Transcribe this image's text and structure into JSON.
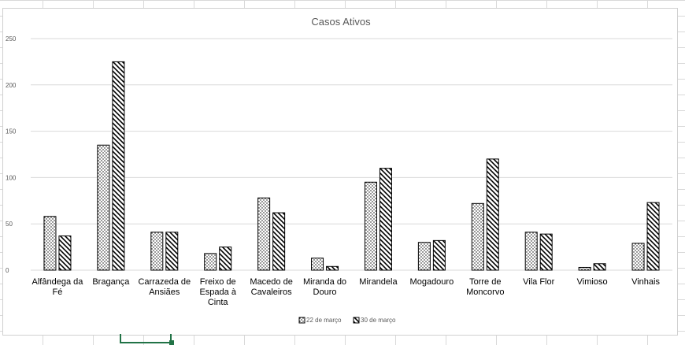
{
  "chart_data": {
    "type": "bar",
    "title": "Casos Ativos",
    "categories": [
      [
        "Alfândega da",
        "Fé"
      ],
      [
        "Bragança"
      ],
      [
        "Carrazeda de",
        "Ansiães"
      ],
      [
        "Freixo de",
        "Espada à",
        "Cinta"
      ],
      [
        "Macedo de",
        "Cavaleiros"
      ],
      [
        "Miranda do",
        "Douro"
      ],
      [
        "Mirandela"
      ],
      [
        "Mogadouro"
      ],
      [
        "Torre de",
        "Moncorvo"
      ],
      [
        "Vila Flor"
      ],
      [
        "Vimioso"
      ],
      [
        "Vinhais"
      ]
    ],
    "series": [
      {
        "name": "22 de março",
        "values": [
          58,
          135,
          41,
          18,
          78,
          13,
          95,
          30,
          72,
          41,
          3,
          29
        ],
        "pattern": "dots"
      },
      {
        "name": "30 de março",
        "values": [
          37,
          225,
          41,
          25,
          62,
          4,
          110,
          32,
          120,
          39,
          7,
          73
        ],
        "pattern": "diagonal"
      }
    ],
    "ylim": [
      0,
      250
    ],
    "yticks": [
      0,
      50,
      100,
      150,
      200,
      250
    ],
    "grid": true,
    "legend": "bottom",
    "colors": {
      "bar_outline": "#000000",
      "gridline": "#d9d9d9",
      "text": "#595959"
    }
  }
}
